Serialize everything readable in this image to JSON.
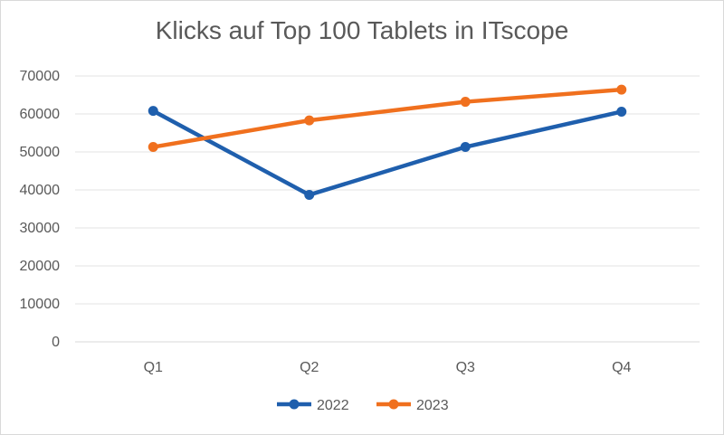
{
  "chart_data": {
    "type": "line",
    "title": "Klicks auf Top 100 Tablets in ITscope",
    "xlabel": "",
    "ylabel": "",
    "categories": [
      "Q1",
      "Q2",
      "Q3",
      "Q4"
    ],
    "ylim": [
      0,
      70000
    ],
    "yticks": [
      0,
      10000,
      20000,
      30000,
      40000,
      50000,
      60000,
      70000
    ],
    "grid": true,
    "legend_position": "bottom",
    "series": [
      {
        "name": "2022",
        "color": "#1f5fad",
        "values": [
          60800,
          38700,
          51300,
          60600
        ]
      },
      {
        "name": "2023",
        "color": "#f0701e",
        "values": [
          51300,
          58300,
          63200,
          66400
        ]
      }
    ]
  }
}
